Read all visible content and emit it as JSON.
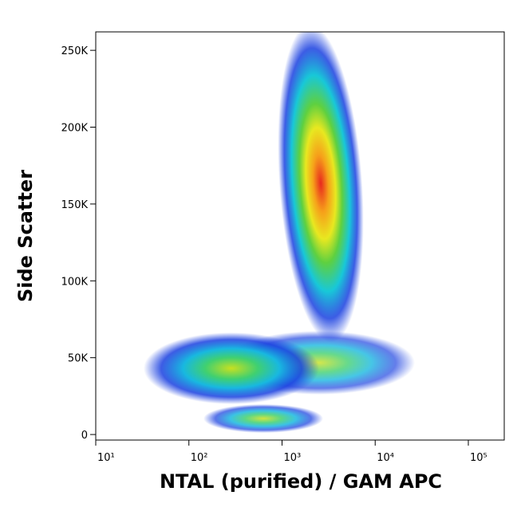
{
  "chart_data": {
    "type": "density",
    "x_label": "NTAL (purified) / GAM APC",
    "y_label": "Side Scatter",
    "xscale": "log",
    "xlim": [
      10,
      243000
    ],
    "xticks": [
      {
        "value": 10,
        "label": "10¹"
      },
      {
        "value": 100,
        "label": "10²"
      },
      {
        "value": 1000,
        "label": "10³"
      },
      {
        "value": 10000,
        "label": "10⁴"
      },
      {
        "value": 100000,
        "label": "10⁵"
      }
    ],
    "ylim": [
      -3600,
      262000
    ],
    "yticks": [
      {
        "value": 0,
        "label": "0"
      },
      {
        "value": 50000,
        "label": "50K"
      },
      {
        "value": 100000,
        "label": "100K"
      },
      {
        "value": 150000,
        "label": "150K"
      },
      {
        "value": 200000,
        "label": "200K"
      },
      {
        "value": 250000,
        "label": "250K"
      }
    ]
  }
}
